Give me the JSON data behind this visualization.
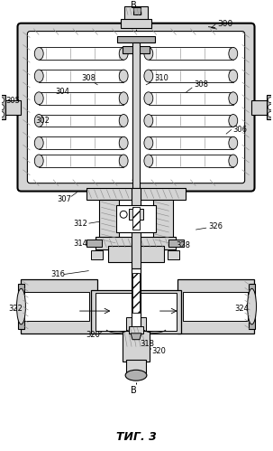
{
  "title": "ΤИГ. 3",
  "bg_color": "#ffffff",
  "line_color": "#000000",
  "fig_width": 3.03,
  "fig_height": 4.99,
  "dpi": 100
}
